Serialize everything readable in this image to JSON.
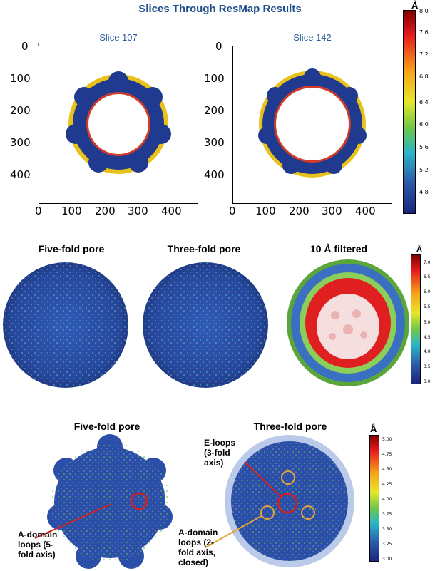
{
  "title": "Slices Through ResMap Results",
  "slices": [
    {
      "label": "Slice 107"
    },
    {
      "label": "Slice 142"
    }
  ],
  "axis_ticks": [
    "0",
    "100",
    "200",
    "300",
    "400"
  ],
  "colorbar_top": {
    "unit": "Å",
    "ticks": [
      "8.0",
      "7.6",
      "7.2",
      "6.8",
      "6.4",
      "6.0",
      "5.6",
      "5.2",
      "4.8"
    ]
  },
  "colorbar_mid": {
    "unit": "Å",
    "ticks": [
      "7.0",
      "6.5",
      "6.0",
      "5.5",
      "5.0",
      "4.5",
      "4.0",
      "3.5",
      "3.0"
    ]
  },
  "colorbar_bottom": {
    "unit": "Å",
    "ticks": [
      "5.00",
      "4.75",
      "4.50",
      "4.25",
      "4.00",
      "3.75",
      "3.50",
      "3.25",
      "3.00"
    ]
  },
  "mid_panels": {
    "five_fold": "Five-fold pore",
    "three_fold": "Three-fold pore",
    "filtered": "10 Å filtered"
  },
  "bottom_panels": {
    "five_fold": "Five-fold pore",
    "three_fold": "Three-fold pore"
  },
  "annotations": {
    "a_domain_5fold": [
      "A-domain",
      "loops (5-",
      "fold axis)"
    ],
    "e_loops": [
      "E-loops",
      "(3-fold",
      "axis)"
    ],
    "a_domain_2fold": [
      "A-domain",
      "loops (2-",
      "fold axis,",
      "closed)"
    ]
  },
  "colors": {
    "title": "#1f4e8c",
    "map_blue": "#1f3a8f",
    "marker_red": "#d62020",
    "marker_orange": "#e3a33a"
  }
}
